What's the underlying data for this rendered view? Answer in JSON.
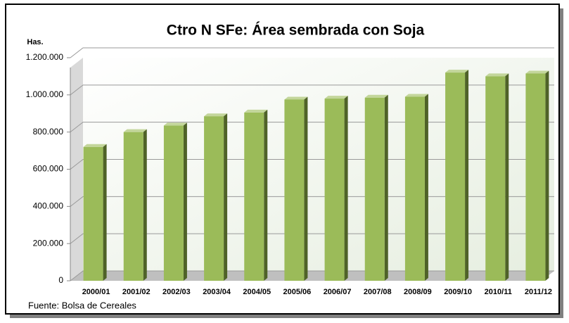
{
  "chart_data": {
    "type": "bar",
    "title": "Ctro N SFe: Área sembrada con Soja",
    "y_label": "Has.",
    "source": "Fuente: Bolsa de Cereales",
    "categories": [
      "2000/01",
      "2001/02",
      "2002/03",
      "2003/04",
      "2004/05",
      "2005/06",
      "2006/07",
      "2007/08",
      "2008/09",
      "2009/10",
      "2010/11",
      "2011/12"
    ],
    "values": [
      720000,
      800000,
      835000,
      885000,
      905000,
      975000,
      980000,
      985000,
      990000,
      1120000,
      1100000,
      1115000
    ],
    "color": "#9bbb59",
    "ylim": [
      0,
      1200000
    ],
    "yticks": [
      0,
      {
        "value": 200000,
        "label": "200.000"
      },
      {
        "value": 400000,
        "label": "400.000"
      },
      {
        "value": 600000,
        "label": "600.000"
      },
      {
        "value": 800000,
        "label": "800.000"
      },
      {
        "value": 1000000,
        "label": "1.000.000"
      },
      {
        "value": 1200000,
        "label": "1.200.000"
      }
    ],
    "grid": true
  }
}
